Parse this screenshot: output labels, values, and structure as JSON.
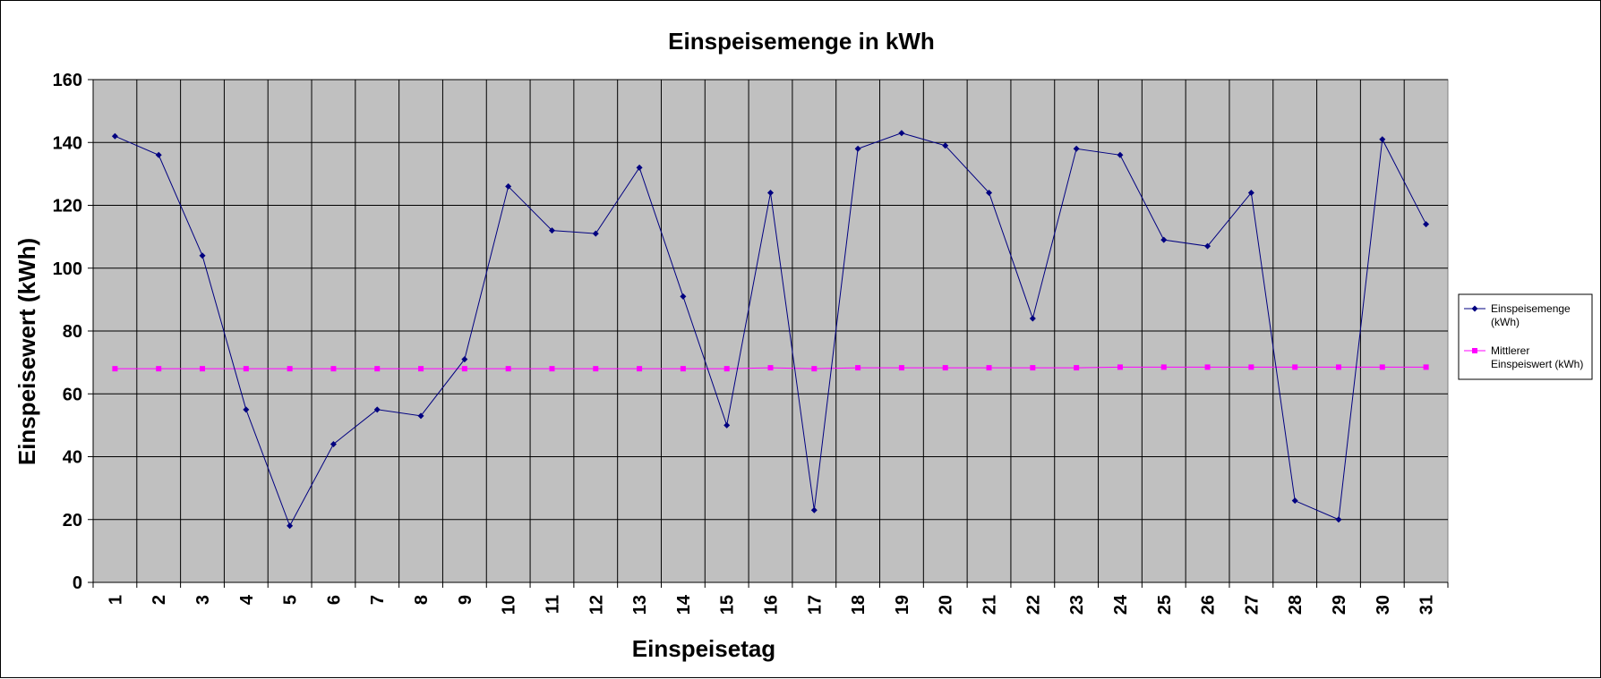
{
  "chart_data": {
    "type": "line",
    "title": "Einspeisemenge in kWh",
    "xlabel": "Einspeisetag",
    "ylabel": "Einspeisewert  (kWh)",
    "ylim": [
      0,
      160
    ],
    "yticks": [
      "0",
      "20",
      "40",
      "60",
      "80",
      "100",
      "120",
      "140",
      "160"
    ],
    "grid": true,
    "legend_position": "right",
    "plot_background": "#c0c0c0",
    "categories": [
      "1",
      "2",
      "3",
      "4",
      "5",
      "6",
      "7",
      "8",
      "9",
      "10",
      "11",
      "12",
      "13",
      "14",
      "15",
      "16",
      "17",
      "18",
      "19",
      "20",
      "21",
      "22",
      "23",
      "24",
      "25",
      "26",
      "27",
      "28",
      "29",
      "30",
      "31"
    ],
    "series": [
      {
        "name_lines": [
          "Einspeisemenge",
          "(kWh)"
        ],
        "color": "#000080",
        "marker": "diamond",
        "values": [
          142,
          136,
          104,
          55,
          18,
          44,
          55,
          53,
          71,
          126,
          112,
          111,
          132,
          91,
          50,
          124,
          23,
          138,
          143,
          139,
          124,
          84,
          138,
          136,
          109,
          107,
          124,
          26,
          20,
          141,
          114
        ]
      },
      {
        "name_lines": [
          "Mittlerer",
          "Einspeiswert (kWh)"
        ],
        "color": "#ff00ff",
        "marker": "square",
        "values": [
          68,
          68,
          68,
          68,
          68,
          68,
          68,
          68,
          68,
          68,
          68,
          68,
          68,
          68,
          68,
          68.3,
          68,
          68.3,
          68.3,
          68.3,
          68.3,
          68.3,
          68.3,
          68.5,
          68.5,
          68.5,
          68.5,
          68.5,
          68.5,
          68.5,
          68.5
        ]
      }
    ]
  }
}
